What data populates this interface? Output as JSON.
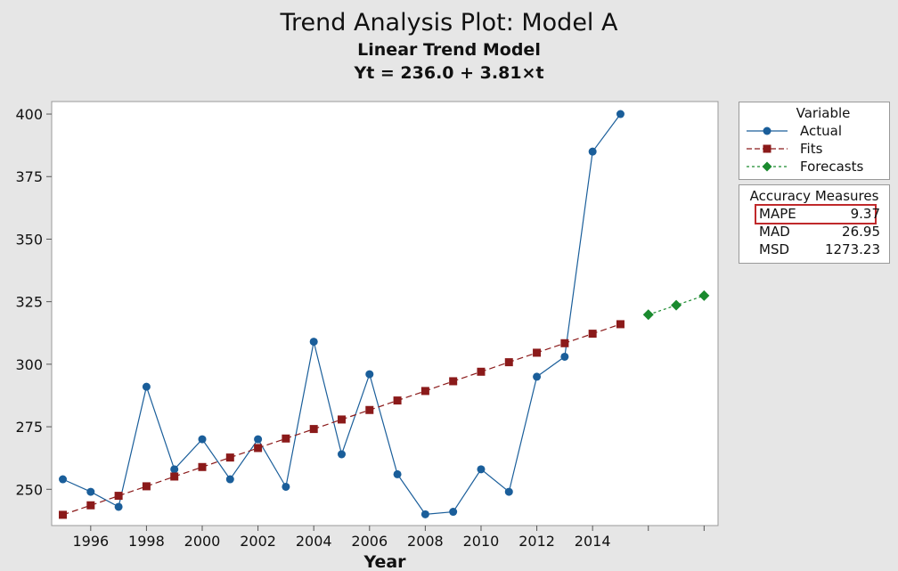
{
  "chart_data": {
    "type": "line",
    "title": "Trend Analysis Plot: Model A",
    "subtitle": "Linear Trend Model",
    "equation": "Yt = 236.0 + 3.81×t",
    "xlabel": "Year",
    "ylabel": "",
    "xlim": [
      1994.6,
      2018.5
    ],
    "ylim": [
      235.5,
      405
    ],
    "x_ticks": [
      1996,
      1998,
      2000,
      2002,
      2004,
      2006,
      2008,
      2010,
      2012,
      2014
    ],
    "x_minor_ticks": [
      2016,
      2018
    ],
    "y_ticks": [
      250,
      275,
      300,
      325,
      350,
      375,
      400
    ],
    "grid": false,
    "legend_position": "right",
    "series": [
      {
        "name": "Actual",
        "marker": "circle",
        "color": "#1a5e9a",
        "line": "solid",
        "x": [
          1995,
          1996,
          1997,
          1998,
          1999,
          2000,
          2001,
          2002,
          2003,
          2004,
          2005,
          2006,
          2007,
          2008,
          2009,
          2010,
          2011,
          2012,
          2013,
          2014,
          2015
        ],
        "values": [
          254,
          249,
          243,
          291,
          258,
          270,
          254,
          270,
          251,
          309,
          264,
          296,
          256,
          240,
          241,
          258,
          249,
          295,
          303,
          385,
          400
        ]
      },
      {
        "name": "Fits",
        "marker": "square",
        "color": "#8b1a1a",
        "line": "dashed",
        "x": [
          1995,
          1996,
          1997,
          1998,
          1999,
          2000,
          2001,
          2002,
          2003,
          2004,
          2005,
          2006,
          2007,
          2008,
          2009,
          2010,
          2011,
          2012,
          2013,
          2014,
          2015
        ],
        "values": [
          239.8,
          243.6,
          247.4,
          251.2,
          255.1,
          258.9,
          262.7,
          266.5,
          270.3,
          274.1,
          277.9,
          281.7,
          285.5,
          289.3,
          293.2,
          297.0,
          300.8,
          304.6,
          308.4,
          312.2,
          316.0
        ]
      },
      {
        "name": "Forecasts",
        "marker": "diamond",
        "color": "#1a8a2e",
        "line": "dashed",
        "x": [
          2016,
          2017,
          2018
        ],
        "values": [
          319.8,
          323.6,
          327.4
        ]
      }
    ]
  },
  "legend": {
    "title": "Variable",
    "items": [
      "Actual",
      "Fits",
      "Forecasts"
    ]
  },
  "accuracy": {
    "title": "Accuracy Measures",
    "rows": [
      {
        "name": "MAPE",
        "value": "9.37"
      },
      {
        "name": "MAD",
        "value": "26.95"
      },
      {
        "name": "MSD",
        "value": "1273.23"
      }
    ],
    "highlight_color": "#c0292b"
  }
}
